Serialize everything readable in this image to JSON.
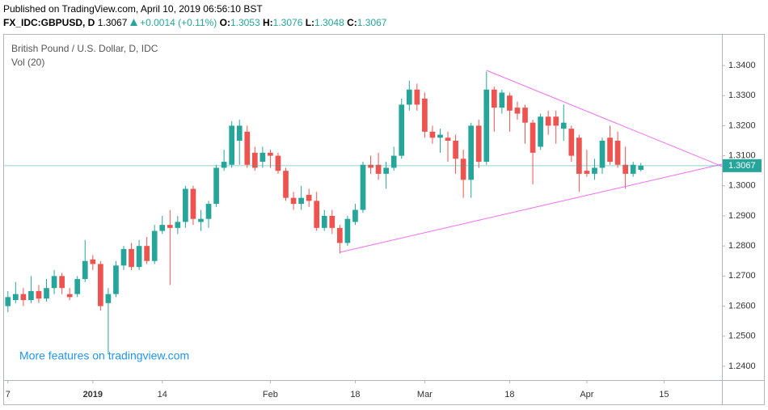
{
  "published": "Published on TradingView.com, April 10, 2019 06:56:10 BST",
  "symbol_line": {
    "symbol": "FX_IDC:GBPUSD, D",
    "price": "1.3067",
    "change": "+0.0014 (+0.11%)",
    "ohlc": [
      {
        "label": "O:",
        "value": "1.3053"
      },
      {
        "label": "H:",
        "value": "1.3076"
      },
      {
        "label": "L:",
        "value": "1.3048"
      },
      {
        "label": "C:",
        "value": "1.3067"
      }
    ]
  },
  "chart_data": {
    "type": "candlestick",
    "title": "British Pound / U.S. Dollar, D, IDC",
    "subtitle": "Vol (20)",
    "annotation": "More features on tradingview.com",
    "up_color": "#26a69a",
    "down_color": "#ef5350",
    "trendline_color": "#f06cf0",
    "grid": false,
    "ylim": [
      1.2354,
      1.3505
    ],
    "yticks": [
      {
        "value": 1.24,
        "label": "1.2400"
      },
      {
        "value": 1.25,
        "label": "1.2500"
      },
      {
        "value": 1.26,
        "label": "1.2600"
      },
      {
        "value": 1.27,
        "label": "1.2700"
      },
      {
        "value": 1.28,
        "label": "1.2800"
      },
      {
        "value": 1.29,
        "label": "1.2900"
      },
      {
        "value": 1.3,
        "label": "1.3000"
      },
      {
        "value": 1.31,
        "label": "1.3100"
      },
      {
        "value": 1.32,
        "label": "1.3200"
      },
      {
        "value": 1.33,
        "label": "1.3300"
      },
      {
        "value": 1.34,
        "label": "1.3400"
      }
    ],
    "last_price": {
      "value": 1.3067,
      "label": "1.3067"
    },
    "categories": [
      "7",
      null,
      null,
      null,
      null,
      null,
      null,
      null,
      null,
      null,
      null,
      "2019",
      null,
      null,
      null,
      null,
      null,
      null,
      null,
      null,
      "14",
      null,
      null,
      null,
      null,
      null,
      null,
      null,
      null,
      null,
      null,
      null,
      null,
      null,
      "Feb",
      null,
      null,
      null,
      null,
      null,
      null,
      null,
      null,
      null,
      null,
      "18",
      null,
      null,
      null,
      null,
      null,
      null,
      null,
      null,
      "Mar",
      null,
      null,
      null,
      null,
      null,
      null,
      null,
      null,
      null,
      null,
      "18",
      null,
      null,
      null,
      null,
      null,
      null,
      null,
      null,
      null,
      "Apr",
      null,
      null,
      null,
      null,
      null,
      null,
      null,
      null,
      null,
      "15",
      null,
      null,
      null,
      null,
      null,
      null,
      null
    ],
    "open": [
      1.26,
      1.262,
      1.264,
      1.262,
      1.265,
      1.2625,
      1.266,
      1.27,
      1.264,
      1.264,
      1.269,
      1.2755,
      1.274,
      1.261,
      1.264,
      1.2735,
      1.279,
      1.273,
      1.28,
      1.275,
      1.285,
      1.287,
      1.286,
      1.288,
      1.299,
      1.288,
      1.289,
      1.294,
      1.306,
      1.307,
      1.315,
      1.318,
      1.311,
      1.308,
      1.311,
      1.31,
      1.305,
      1.296,
      1.294,
      1.297,
      1.295,
      1.286,
      1.29,
      1.286,
      1.281,
      1.288,
      1.292,
      1.307,
      1.307,
      1.304,
      1.306,
      1.31,
      1.327,
      1.332,
      1.329,
      1.318,
      1.316,
      1.316,
      1.315,
      1.309,
      1.302,
      1.32,
      1.308,
      1.332,
      1.326,
      1.33,
      1.326,
      1.326,
      1.321,
      1.313,
      1.323,
      1.323,
      1.319,
      1.319,
      1.316,
      1.305,
      1.304,
      1.306,
      1.316,
      1.315,
      1.307,
      1.304,
      1.3053,
      null,
      null,
      null,
      null,
      null,
      null,
      null,
      null,
      null,
      null
    ],
    "high": [
      1.265,
      1.268,
      1.266,
      1.27,
      1.267,
      1.269,
      1.272,
      1.271,
      1.266,
      1.27,
      1.282,
      1.277,
      1.275,
      1.266,
      1.275,
      1.28,
      1.281,
      1.282,
      1.283,
      1.287,
      1.29,
      1.292,
      1.29,
      1.3,
      1.3,
      1.292,
      1.295,
      1.307,
      1.312,
      1.3215,
      1.322,
      1.32,
      1.313,
      1.313,
      1.312,
      1.311,
      1.306,
      1.298,
      1.3,
      1.299,
      1.298,
      1.292,
      1.292,
      1.287,
      1.29,
      1.294,
      1.308,
      1.31,
      1.311,
      1.308,
      1.313,
      1.329,
      1.335,
      1.334,
      1.331,
      1.32,
      1.319,
      1.318,
      1.317,
      1.312,
      1.321,
      1.322,
      1.338,
      1.333,
      1.332,
      1.331,
      1.328,
      1.327,
      1.322,
      1.324,
      1.325,
      1.325,
      1.327,
      1.32,
      1.317,
      1.312,
      1.309,
      1.316,
      1.32,
      1.318,
      1.313,
      1.308,
      1.3076,
      null,
      null,
      null,
      null,
      null,
      null,
      null,
      null,
      null,
      null
    ],
    "low": [
      1.258,
      1.261,
      1.26,
      1.261,
      1.261,
      1.2615,
      1.264,
      1.264,
      1.262,
      1.263,
      1.268,
      1.272,
      1.2585,
      1.244,
      1.263,
      1.272,
      1.272,
      1.272,
      1.274,
      1.274,
      1.284,
      1.267,
      1.284,
      1.286,
      1.287,
      1.285,
      1.286,
      1.293,
      1.305,
      1.306,
      1.307,
      1.306,
      1.305,
      1.306,
      1.306,
      1.304,
      1.295,
      1.292,
      1.292,
      1.293,
      1.285,
      1.285,
      1.284,
      1.2775,
      1.28,
      1.287,
      1.291,
      1.304,
      1.302,
      1.299,
      1.305,
      1.309,
      1.325,
      1.325,
      1.316,
      1.314,
      1.311,
      1.308,
      1.304,
      1.296,
      1.296,
      1.306,
      1.307,
      1.318,
      1.324,
      1.318,
      1.322,
      1.314,
      1.3005,
      1.312,
      1.317,
      1.314,
      1.315,
      1.308,
      1.298,
      1.303,
      1.302,
      1.304,
      1.307,
      1.306,
      1.299,
      1.303,
      1.3048,
      null,
      null,
      null,
      null,
      null,
      null,
      null,
      null,
      null,
      null
    ],
    "close": [
      1.263,
      1.264,
      1.262,
      1.265,
      1.2625,
      1.266,
      1.27,
      1.266,
      1.263,
      1.269,
      1.275,
      1.274,
      1.26,
      1.264,
      1.2735,
      1.279,
      1.273,
      1.28,
      1.275,
      1.285,
      1.287,
      1.286,
      1.288,
      1.299,
      1.289,
      1.289,
      1.294,
      1.306,
      1.308,
      1.32,
      1.32,
      1.307,
      1.306,
      1.311,
      1.31,
      1.305,
      1.296,
      1.294,
      1.296,
      1.295,
      1.286,
      1.29,
      1.286,
      1.281,
      1.289,
      1.292,
      1.307,
      1.306,
      1.304,
      1.306,
      1.31,
      1.327,
      1.332,
      1.327,
      1.318,
      1.316,
      1.317,
      1.315,
      1.309,
      1.302,
      1.32,
      1.308,
      1.332,
      1.326,
      1.331,
      1.325,
      1.324,
      1.321,
      1.311,
      1.323,
      1.32,
      1.32,
      1.321,
      1.31,
      1.304,
      1.304,
      1.306,
      1.315,
      1.308,
      1.307,
      1.304,
      1.307,
      1.3067,
      null,
      null,
      null,
      null,
      null,
      null,
      null,
      null,
      null,
      null
    ],
    "trendlines": [
      {
        "from": [
          62,
          1.3384
        ],
        "to": [
          92.5,
          1.3065
        ]
      },
      {
        "from": [
          43,
          1.2779
        ],
        "to": [
          92.5,
          1.3072
        ]
      }
    ]
  }
}
